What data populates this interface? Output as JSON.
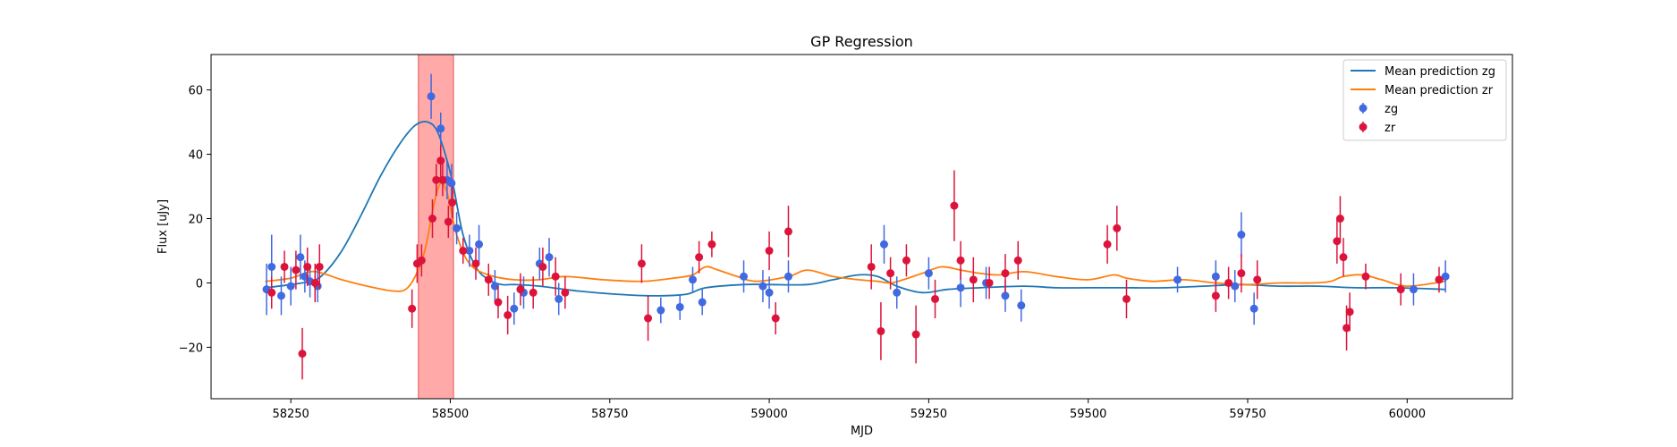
{
  "chart_data": {
    "type": "scatter",
    "title": "GP Regression",
    "xlabel": "MJD",
    "ylabel": "Flux [uJy]",
    "xlim": [
      58125,
      60165
    ],
    "ylim": [
      -36,
      71
    ],
    "xticks": [
      58250,
      58500,
      58750,
      59000,
      59250,
      59500,
      59750,
      60000
    ],
    "yticks": [
      -20,
      0,
      20,
      40,
      60
    ],
    "highlight_span": {
      "x": [
        58450,
        58505
      ],
      "color": "#ff9a9a"
    },
    "legend": {
      "placement": "top-right"
    },
    "series": [
      {
        "name": "Mean prediction zg",
        "kind": "line",
        "color": "#1f77b4",
        "x": [
          58210,
          58250,
          58280,
          58300,
          58330,
          58360,
          58390,
          58420,
          58445,
          58465,
          58480,
          58495,
          58505,
          58520,
          58540,
          58560,
          58580,
          58600,
          58640,
          58700,
          58760,
          58820,
          58870,
          58900,
          58960,
          59000,
          59060,
          59100,
          59140,
          59170,
          59200,
          59240,
          59280,
          59330,
          59400,
          59450,
          59500,
          59560,
          59620,
          59680,
          59740,
          59800,
          59860,
          59920,
          59980,
          60060
        ],
        "y": [
          -1.5,
          -0.5,
          0.5,
          2.5,
          10,
          21,
          33,
          43,
          49,
          50,
          47,
          38,
          30,
          15,
          5,
          1,
          -0.5,
          -0.5,
          -1,
          -2.5,
          -3.5,
          -4,
          -3.5,
          -1.5,
          -0.5,
          -0.5,
          -0.5,
          1,
          2.5,
          2,
          -1,
          -3,
          -2,
          -1.5,
          -1,
          -1.5,
          -1.5,
          -1.5,
          -1.5,
          -1,
          -0.5,
          -1,
          -1,
          -1.5,
          -1.5,
          -2
        ]
      },
      {
        "name": "Mean prediction zr",
        "kind": "line",
        "color": "#ff7f0e",
        "x": [
          58210,
          58250,
          58280,
          58300,
          58330,
          58370,
          58410,
          58430,
          58445,
          58460,
          58475,
          58485,
          58495,
          58510,
          58530,
          58560,
          58600,
          58640,
          58680,
          58740,
          58800,
          58850,
          58880,
          58900,
          58920,
          58950,
          58980,
          59030,
          59060,
          59100,
          59140,
          59170,
          59190,
          59210,
          59240,
          59270,
          59300,
          59330,
          59360,
          59400,
          59450,
          59500,
          59540,
          59560,
          59600,
          59650,
          59700,
          59750,
          59800,
          59850,
          59880,
          59900,
          59930,
          59960,
          60000,
          60060
        ],
        "y": [
          0.5,
          1.5,
          3.5,
          3,
          1,
          -1,
          -2.5,
          -2,
          2,
          10,
          25,
          31,
          28,
          15,
          6,
          2.5,
          1,
          1,
          2,
          1,
          0.5,
          1.5,
          2.5,
          5,
          4,
          2,
          0.5,
          2,
          4,
          2,
          1,
          0.5,
          0,
          1,
          3,
          5,
          4,
          3,
          2.5,
          3.5,
          2,
          1,
          2.5,
          1.5,
          0.5,
          1,
          0,
          -0.5,
          0,
          0,
          0.5,
          2,
          2.5,
          1,
          -1,
          0.5
        ]
      },
      {
        "name": "zg",
        "kind": "errorbar",
        "color": "#4169e1",
        "x": [
          58212,
          58220,
          58235,
          58250,
          58265,
          58272,
          58280,
          58292,
          58470,
          58485,
          58495,
          58502,
          58510,
          58530,
          58545,
          58570,
          58600,
          58615,
          58640,
          58655,
          58670,
          58830,
          58860,
          58880,
          58895,
          58960,
          58990,
          59000,
          59030,
          59180,
          59200,
          59250,
          59300,
          59340,
          59370,
          59395,
          59640,
          59700,
          59730,
          59740,
          59760,
          60010,
          60060
        ],
        "y": [
          -2,
          5,
          -4,
          -1,
          8,
          2,
          0.5,
          -1,
          58,
          48,
          32,
          31,
          17,
          10,
          12,
          -1,
          -8,
          -3,
          6,
          8,
          -5,
          -8.5,
          -7.5,
          1,
          -6,
          2,
          -1,
          -3,
          2,
          12,
          -3,
          3,
          -1.5,
          0,
          -4,
          -7,
          1,
          2,
          -1,
          15,
          -8,
          -2,
          2
        ],
        "err": [
          8,
          10,
          6,
          6,
          7,
          5,
          5,
          5,
          7,
          5,
          6,
          6,
          5,
          5,
          6,
          5,
          5,
          5,
          5,
          6,
          5,
          4,
          4,
          4,
          4,
          5,
          5,
          5,
          5,
          6,
          5,
          5,
          6,
          5,
          5,
          5,
          4,
          5,
          5,
          7,
          5,
          5,
          5
        ]
      },
      {
        "name": "zr",
        "kind": "errorbar",
        "color": "#dc143c",
        "x": [
          58220,
          58240,
          58258,
          58268,
          58276,
          58288,
          58295,
          58440,
          58448,
          58455,
          58472,
          58478,
          58485,
          58488,
          58497,
          58503,
          58520,
          58540,
          58560,
          58575,
          58590,
          58610,
          58630,
          58645,
          58665,
          58680,
          58800,
          58810,
          58890,
          58910,
          59000,
          59010,
          59030,
          59160,
          59175,
          59190,
          59215,
          59230,
          59260,
          59290,
          59300,
          59320,
          59345,
          59370,
          59390,
          59530,
          59545,
          59560,
          59700,
          59720,
          59740,
          59765,
          59890,
          59895,
          59900,
          59905,
          59910,
          59935,
          59990,
          60050
        ],
        "y": [
          -3,
          5,
          4,
          -22,
          5,
          0,
          5,
          -8,
          6,
          7,
          20,
          32,
          38,
          32,
          19,
          25,
          10,
          6,
          1,
          -6,
          -10,
          -2,
          -3,
          5,
          2,
          -3,
          6,
          -11,
          8,
          12,
          10,
          -11,
          16,
          5,
          -15,
          3,
          7,
          -16,
          -5,
          24,
          7,
          1,
          0,
          3,
          7,
          12,
          17,
          -5,
          -4,
          0,
          3,
          1,
          13,
          20,
          8,
          -14,
          -9,
          2,
          -2,
          1
        ],
        "err": [
          5,
          5,
          6,
          8,
          6,
          6,
          7,
          6,
          6,
          5,
          6,
          5,
          5,
          5,
          5,
          5,
          4,
          5,
          5,
          5,
          6,
          5,
          5,
          6,
          6,
          5,
          6,
          7,
          5,
          4,
          6,
          5,
          8,
          7,
          9,
          5,
          5,
          9,
          6,
          11,
          6,
          7,
          5,
          6,
          6,
          6,
          7,
          6,
          5,
          5,
          6,
          6,
          7,
          7,
          6,
          7,
          6,
          4,
          5,
          4
        ]
      }
    ]
  }
}
